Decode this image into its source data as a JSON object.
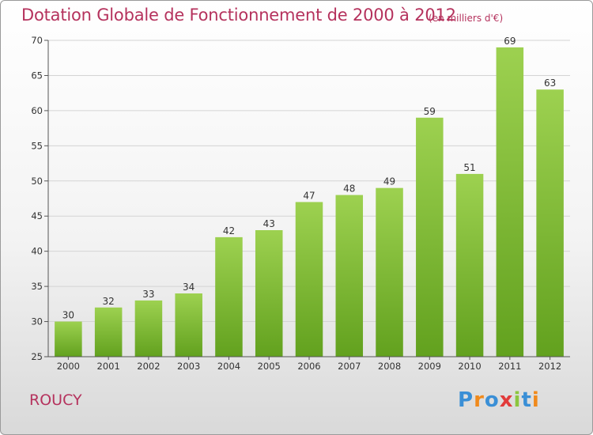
{
  "header": {
    "title": "Dotation Globale de Fonctionnement de 2000 à 2012",
    "subtitle": "(en milliers d'€)"
  },
  "footer": {
    "commune": "ROUCY",
    "logo": "Proxiti",
    "logo_colors": [
      "#3a8fd6",
      "#f08a1c",
      "#3a8fd6",
      "#e23b3b",
      "#8cc63f",
      "#3a8fd6",
      "#f08a1c"
    ]
  },
  "colors": {
    "bar_top": "#9dd150",
    "bar_bottom": "#62a11e",
    "grid": "#d4d4d4",
    "axis": "#555555",
    "title": "#b5325d"
  },
  "chart_data": {
    "type": "bar",
    "categories": [
      "2000",
      "2001",
      "2002",
      "2003",
      "2004",
      "2005",
      "2006",
      "2007",
      "2008",
      "2009",
      "2010",
      "2011",
      "2012"
    ],
    "values": [
      30,
      32,
      33,
      34,
      42,
      43,
      47,
      48,
      49,
      59,
      51,
      69,
      63
    ],
    "ylim": [
      25,
      70
    ],
    "yticks": [
      25,
      30,
      35,
      40,
      45,
      50,
      55,
      60,
      65,
      70
    ],
    "grid": true,
    "data_labels": true
  }
}
